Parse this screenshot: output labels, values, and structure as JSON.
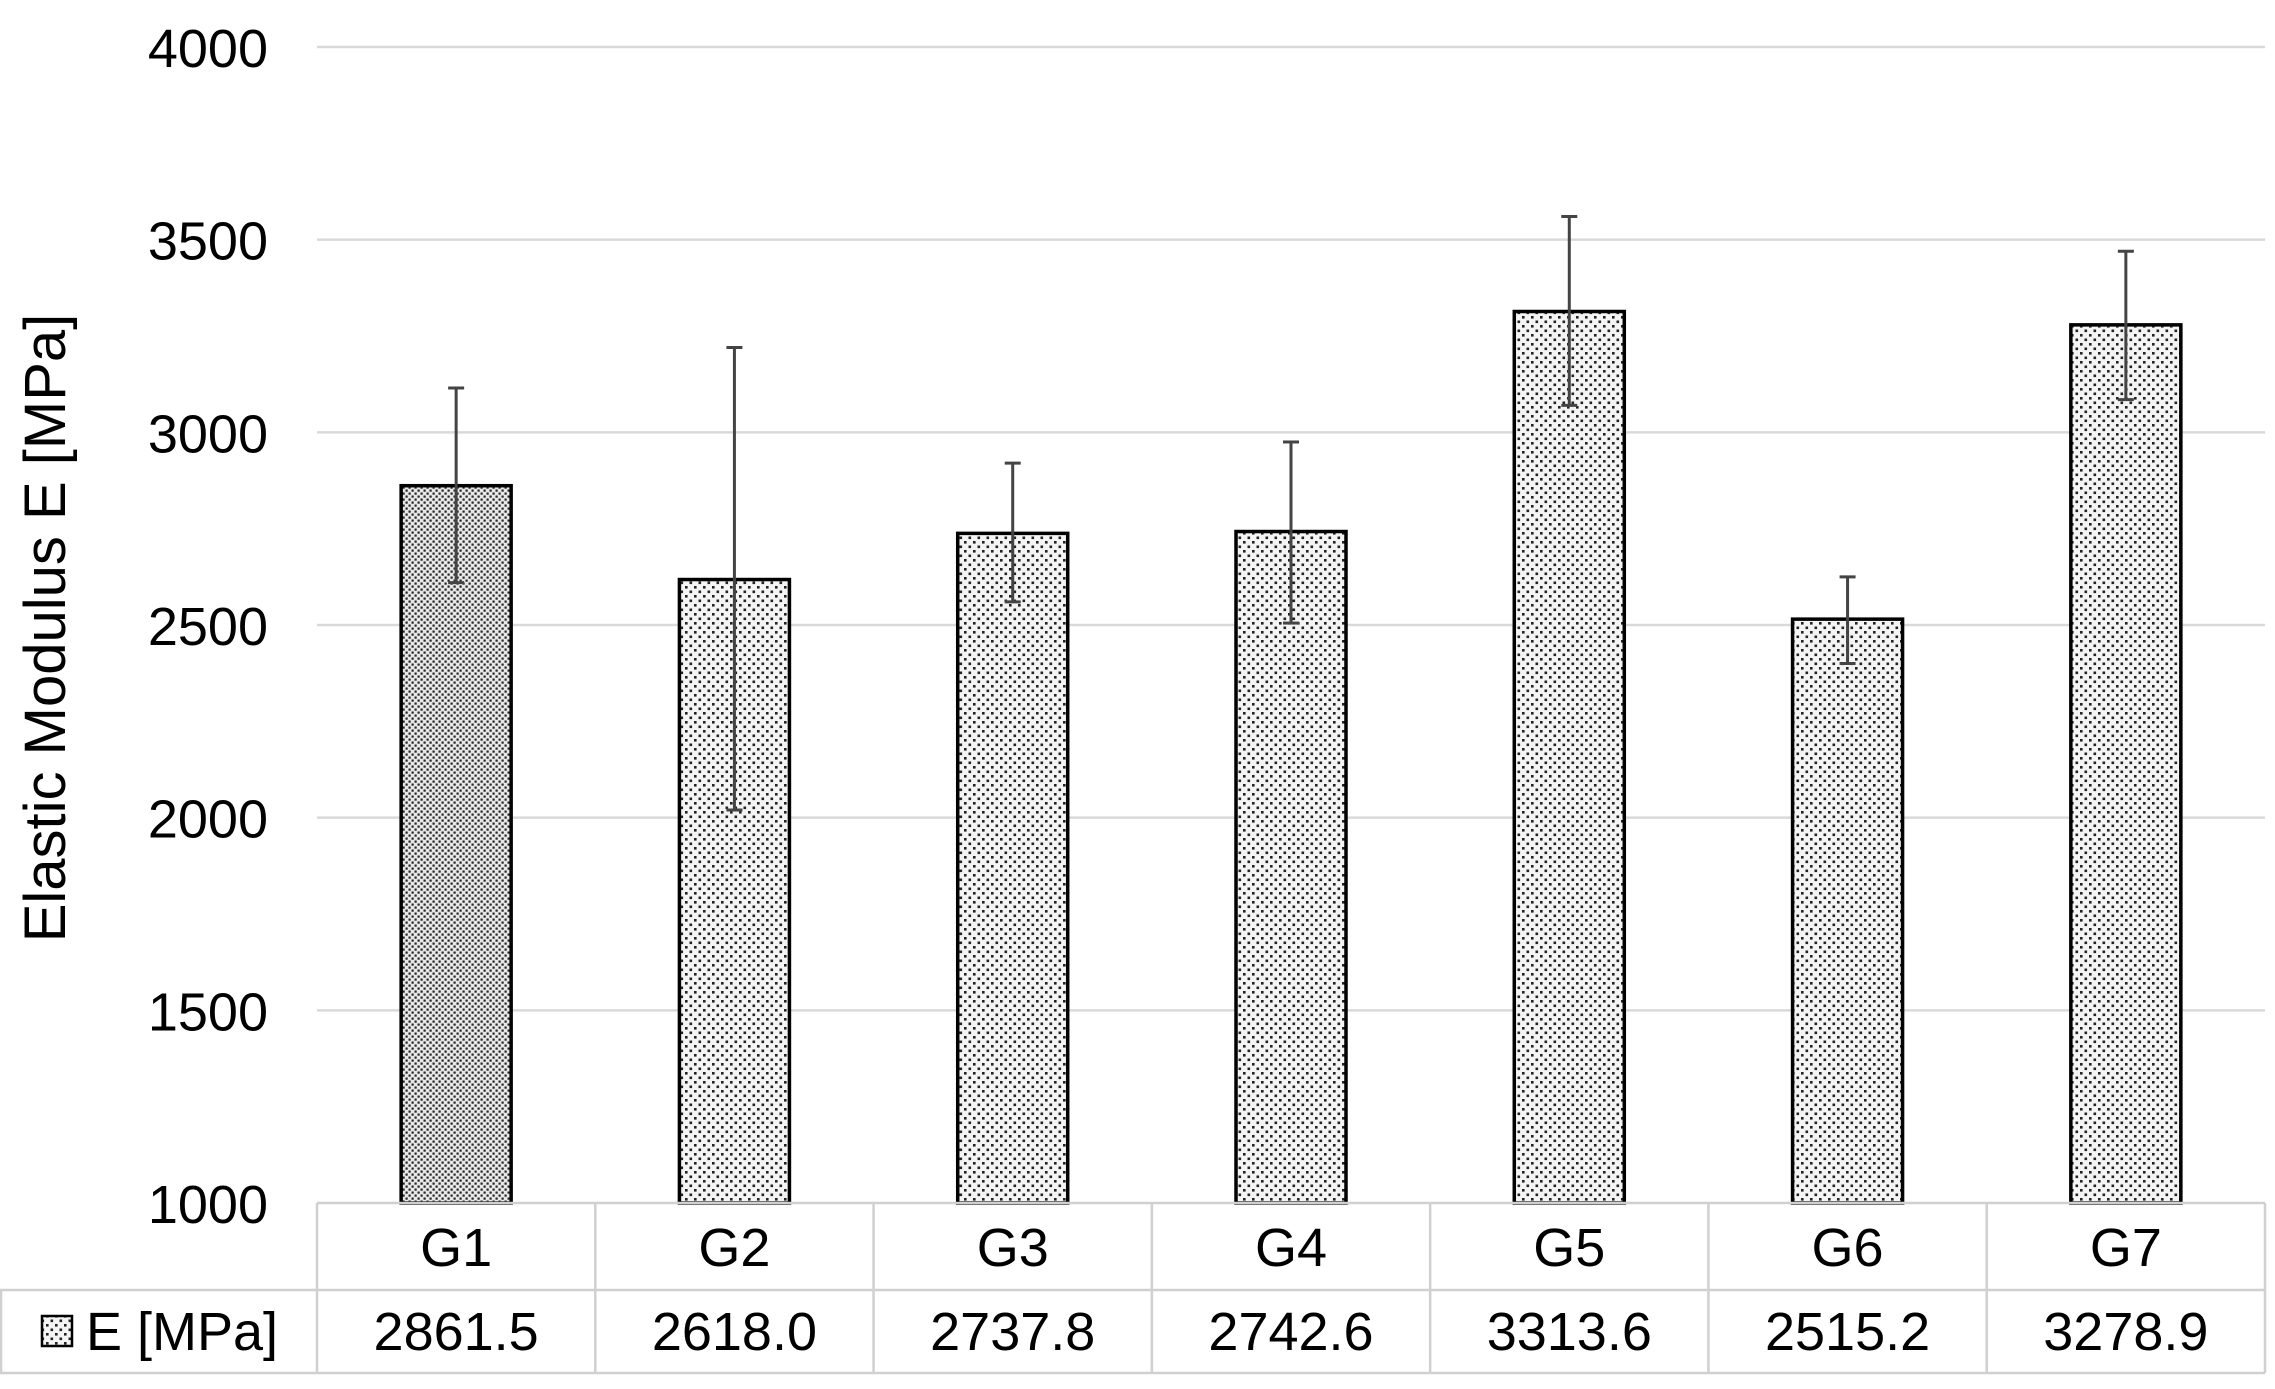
{
  "chart_data": {
    "type": "bar",
    "title": "",
    "xlabel": "",
    "ylabel": "Elastic Modulus  E [MPa]",
    "ylim": [
      1000,
      4000
    ],
    "yticks": [
      1000,
      1500,
      2000,
      2500,
      3000,
      3500,
      4000
    ],
    "grid": true,
    "categories": [
      "G1",
      "G2",
      "G3",
      "G4",
      "G5",
      "G6",
      "G7"
    ],
    "series": [
      {
        "name": "E [MPa]",
        "values": [
          2861.5,
          2618.0,
          2737.8,
          2742.6,
          3313.6,
          2515.2,
          3278.9
        ],
        "error_upper": [
          3115,
          3220,
          2920,
          2975,
          3560,
          2625,
          3470
        ],
        "error_lower": [
          2610,
          2020,
          2560,
          2505,
          3070,
          2400,
          3085
        ],
        "pattern": "dotted"
      }
    ],
    "data_table": {
      "row_label": "E [MPa]",
      "values": [
        "2861.5",
        "2618.0",
        "2737.8",
        "2742.6",
        "3313.6",
        "2515.2",
        "3278.9"
      ]
    },
    "colors": {
      "bar_fill": "#f4f4f4",
      "bar_dots": "#222222",
      "bar_outline": "#000000",
      "grid": "#d9d9d9",
      "error_bar": "#444444"
    }
  }
}
